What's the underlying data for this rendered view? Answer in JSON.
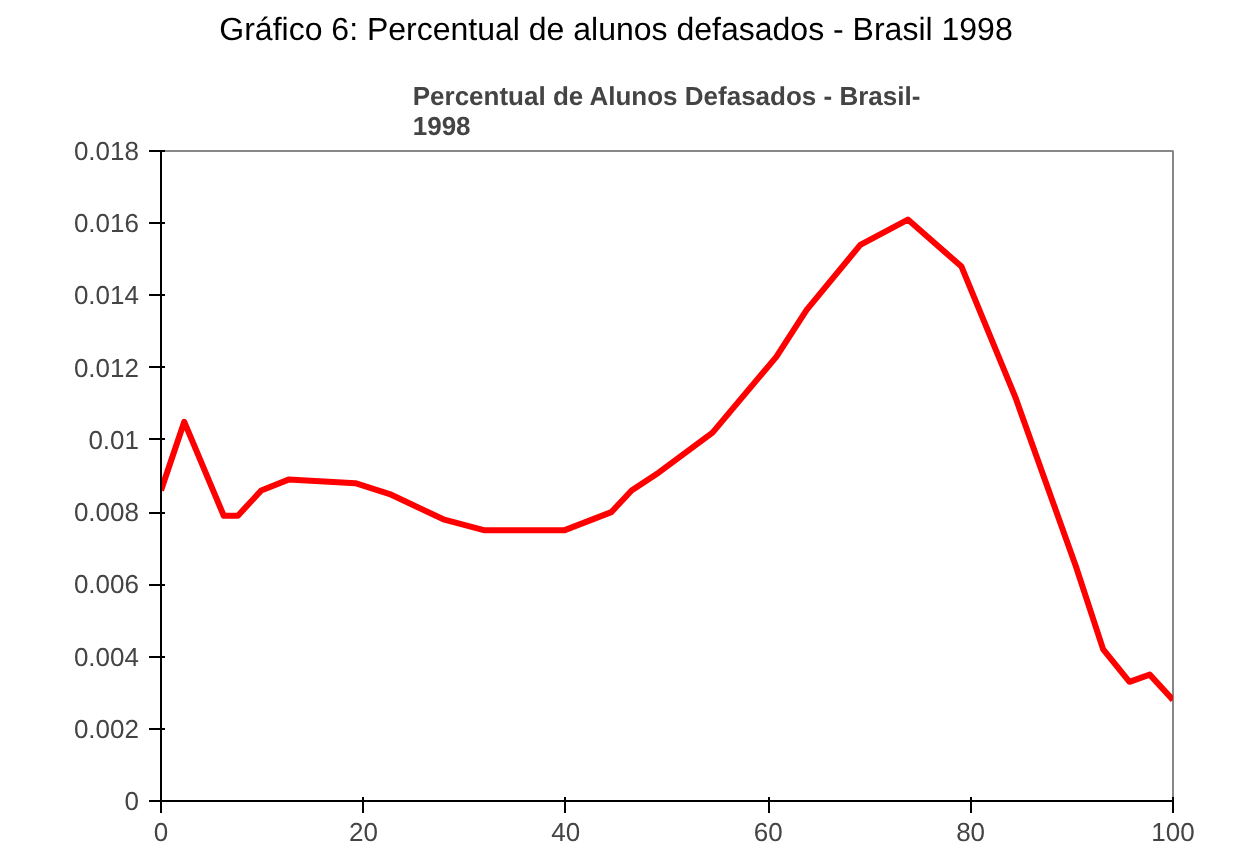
{
  "chart_data": {
    "type": "line",
    "title": "Percentual de Alunos Defasados - Brasil-\n1998",
    "annotations": [
      "Gráfico 6: Percentual de alunos defasados - Brasil 1998"
    ],
    "x": [
      0,
      2.3,
      6.2,
      7.6,
      9.9,
      12.6,
      19.2,
      22.6,
      27.9,
      31.9,
      39.9,
      44.5,
      46.5,
      49.2,
      54.5,
      60.8,
      63.8,
      69.1,
      73.8,
      79.1,
      84.4,
      90.4,
      93.1,
      95.7,
      97.7,
      100
    ],
    "series": [
      {
        "color": "#ff0000",
        "values": [
          0.0086,
          0.0105,
          0.0079,
          0.0079,
          0.0086,
          0.0089,
          0.0088,
          0.0085,
          0.0078,
          0.0075,
          0.0075,
          0.008,
          0.0086,
          0.0091,
          0.0102,
          0.0123,
          0.0136,
          0.0154,
          0.0161,
          0.0148,
          0.0112,
          0.0065,
          0.0042,
          0.0033,
          0.0035,
          0.0028
        ]
      }
    ],
    "xlim": [
      0,
      100
    ],
    "xticks": [
      0,
      20,
      40,
      60,
      80,
      100
    ],
    "ylim": [
      0,
      0.018
    ],
    "yticks": [
      0,
      0.002,
      0.004,
      0.006,
      0.008,
      0.01,
      0.012,
      0.014,
      0.016,
      0.018
    ],
    "grid": false,
    "marker": "none",
    "line_style": "solid"
  }
}
